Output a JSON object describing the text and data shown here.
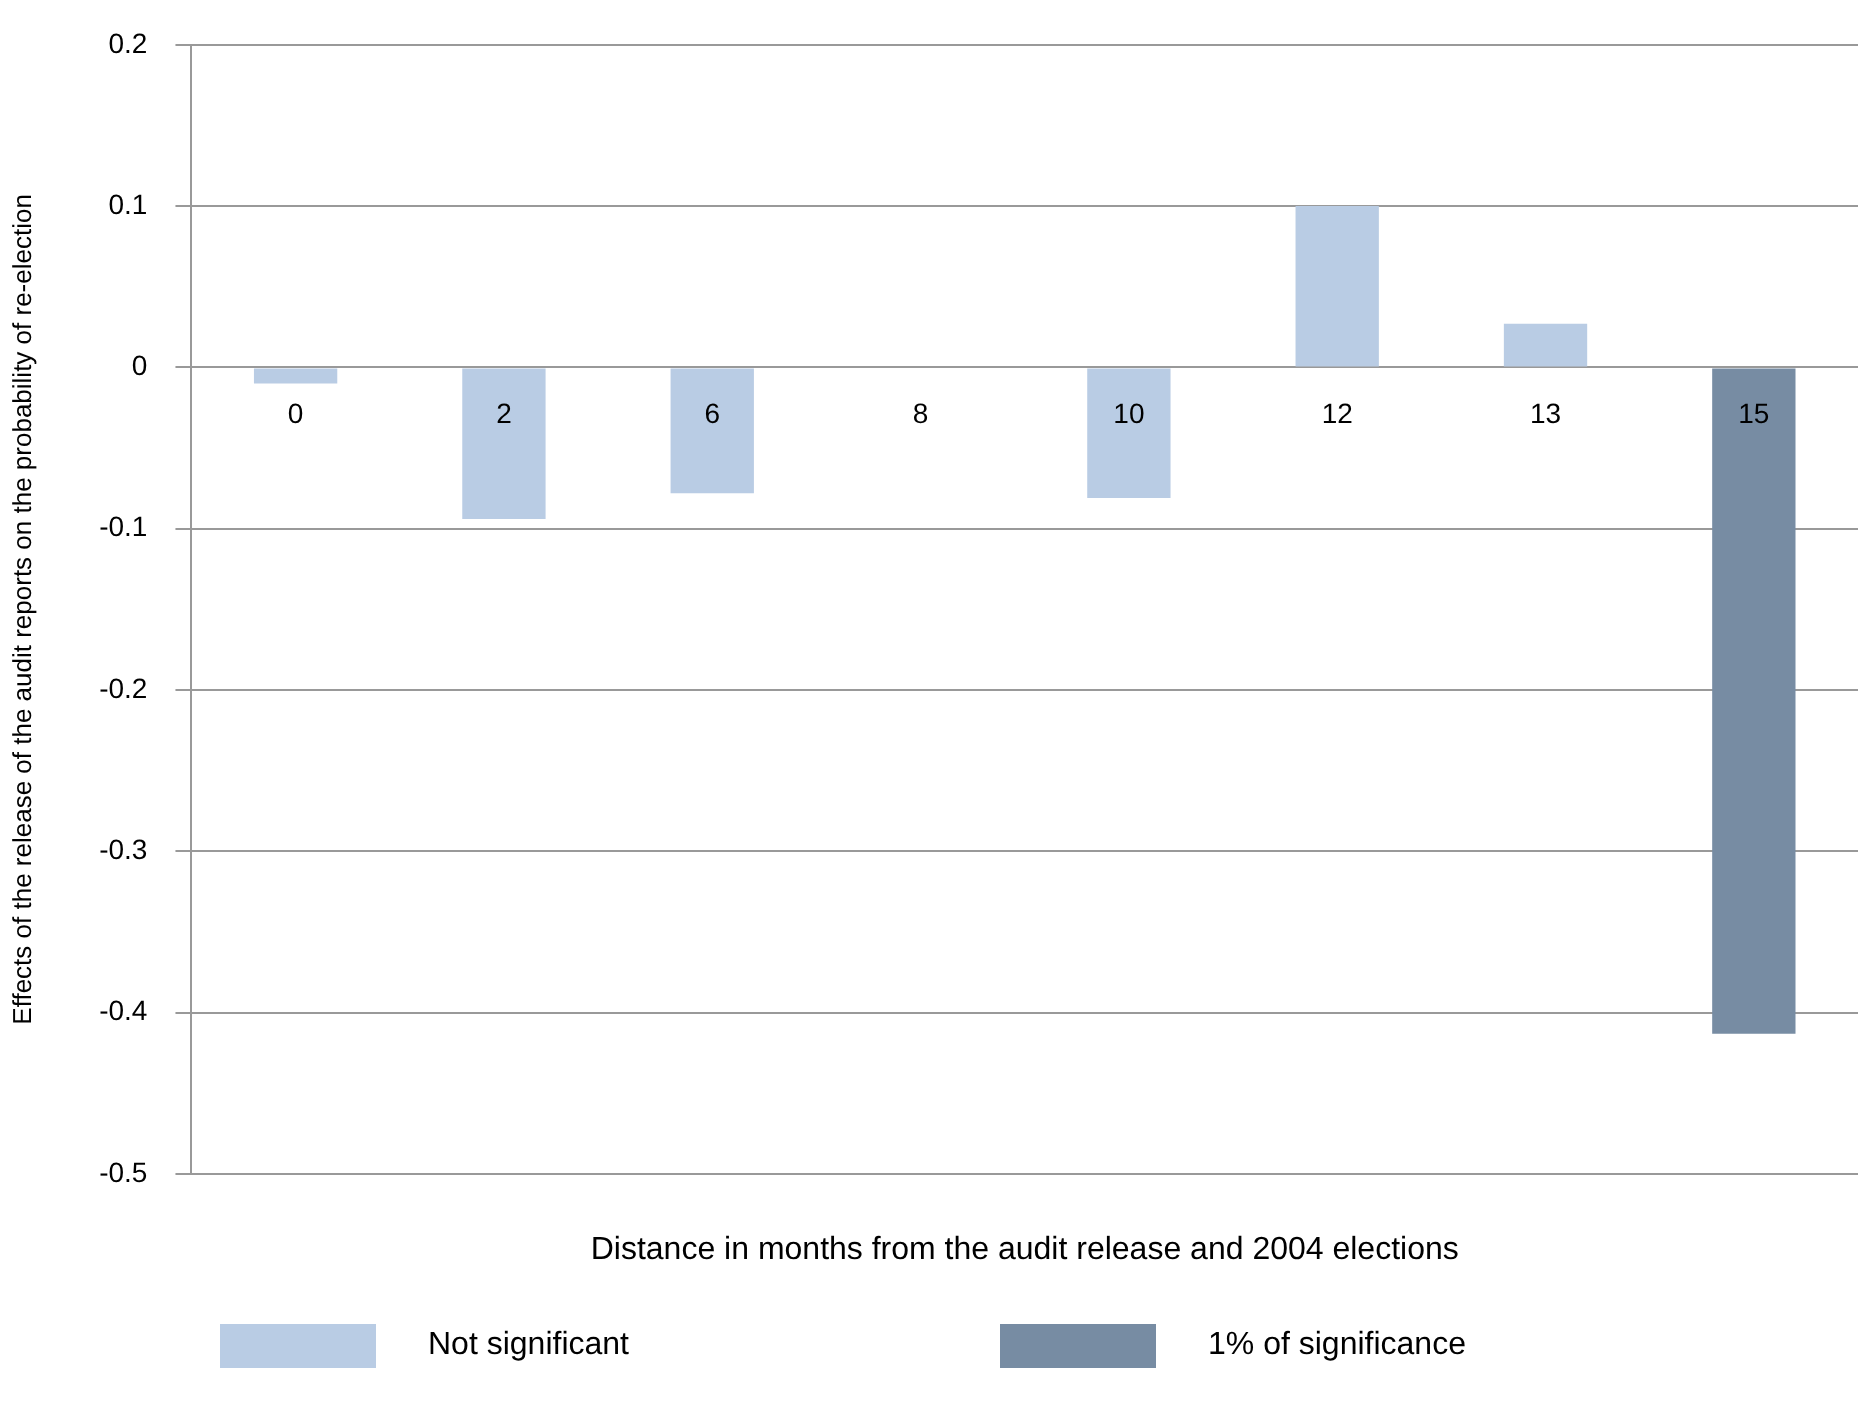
{
  "chart_data": {
    "type": "bar",
    "xlabel": "Distance in months from the audit release and 2004 elections",
    "ylabel": "Effects of the release of the audit reports on the probability of re-election",
    "categories": [
      "0",
      "2",
      "6",
      "8",
      "10",
      "12",
      "13",
      "15"
    ],
    "series": [
      {
        "name": "Not significant",
        "color": "#b9cce4",
        "values": [
          -0.01,
          -0.094,
          -0.078,
          null,
          -0.081,
          0.1,
          0.027,
          null
        ]
      },
      {
        "name": "1% of significance",
        "color": "#778ca3",
        "values": [
          null,
          null,
          null,
          null,
          null,
          null,
          null,
          -0.413
        ]
      }
    ],
    "ylim": [
      -0.5,
      0.2
    ],
    "yticks": [
      -0.5,
      -0.4,
      -0.3,
      -0.2,
      -0.1,
      0,
      0.1,
      0.2
    ],
    "grid": "y",
    "legend": "bottom"
  }
}
